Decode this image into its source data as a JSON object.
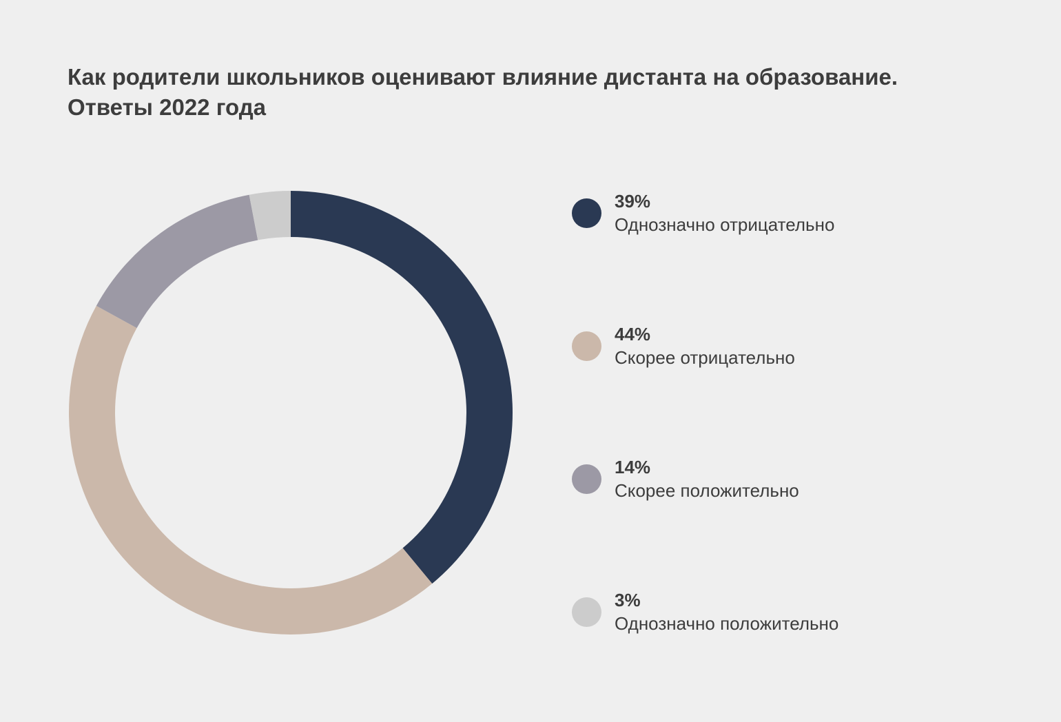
{
  "chart_data": {
    "type": "pie",
    "title": "Как родители школьников оценивают влияние дистанта на образование.",
    "subtitle": "Ответы 2022 года",
    "donut": true,
    "legend_placement": "right",
    "slices": [
      {
        "value": 39,
        "value_label": "39%",
        "label": "Однозначно отрицательно",
        "color": "#2a3953"
      },
      {
        "value": 44,
        "value_label": "44%",
        "label": "Скорее отрицательно",
        "color": "#cbb8aa"
      },
      {
        "value": 14,
        "value_label": "14%",
        "label": "Скорее положительно",
        "color": "#9c99a5"
      },
      {
        "value": 3,
        "value_label": "3%",
        "label": "Однозначно положительно",
        "color": "#cccccc"
      }
    ]
  }
}
